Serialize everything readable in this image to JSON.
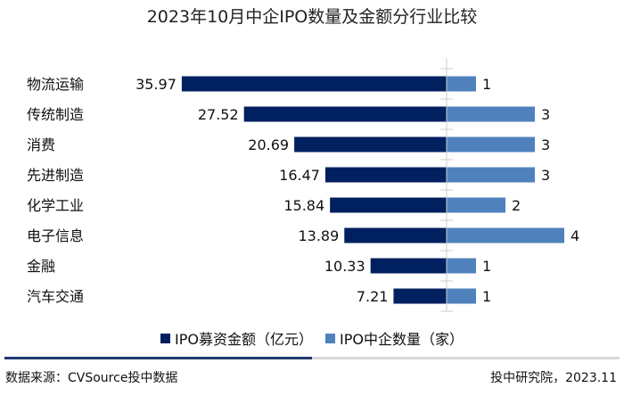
{
  "chart_data": {
    "type": "bar",
    "title": "2023年10月中企IPO数量及金额分行业比较",
    "categories": [
      "物流运输",
      "传统制造",
      "消费",
      "先进制造",
      "化学工业",
      "电子信息",
      "金融",
      "汽车交通"
    ],
    "series": [
      {
        "name": "IPO募资金额（亿元）",
        "values": [
          35.97,
          27.52,
          20.69,
          16.47,
          15.84,
          13.89,
          10.33,
          7.21
        ],
        "color": "#00205F",
        "direction": "left"
      },
      {
        "name": "IPO中企数量（家）",
        "values": [
          1,
          3,
          3,
          3,
          2,
          4,
          1,
          1
        ],
        "color": "#4F81BD",
        "direction": "right"
      }
    ],
    "orientation": "horizontal-diverging",
    "grid": false,
    "legend_position": "bottom"
  },
  "footer": {
    "source": "数据来源：CVSource投中数据",
    "credit": "投中研究院，2023.11"
  }
}
